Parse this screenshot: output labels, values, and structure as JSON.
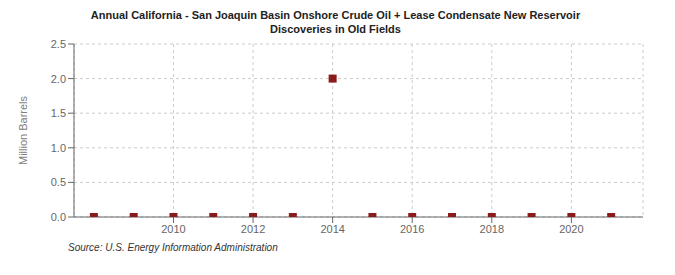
{
  "chart_data": {
    "type": "scatter",
    "title": "Annual California - San Joaquin Basin Onshore Crude Oil + Lease Condensate New Reservoir\nDiscoveries in Old Fields",
    "ylabel": "Million Barrels",
    "annotation": "Source: U.S. Energy Information Administration",
    "x": [
      2008,
      2009,
      2010,
      2011,
      2012,
      2013,
      2014,
      2015,
      2016,
      2017,
      2018,
      2019,
      2020,
      2021
    ],
    "values": [
      0.0,
      0.0,
      0.0,
      0.0,
      0.0,
      0.0,
      2.0,
      0.0,
      0.0,
      0.0,
      0.0,
      0.0,
      0.0,
      0.0
    ],
    "color": "#8b1a1a",
    "marker": "square",
    "xlim": [
      2007.5,
      2021.8
    ],
    "ylim": [
      0,
      2.5
    ],
    "xticks": [
      2010,
      2012,
      2014,
      2016,
      2018,
      2020
    ],
    "yticks": [
      {
        "value": 0,
        "label": "0.0"
      },
      0.5,
      {
        "value": 1,
        "label": "1.0"
      },
      1.5,
      {
        "value": 2,
        "label": "2.0"
      },
      2.5
    ],
    "grid": true
  }
}
